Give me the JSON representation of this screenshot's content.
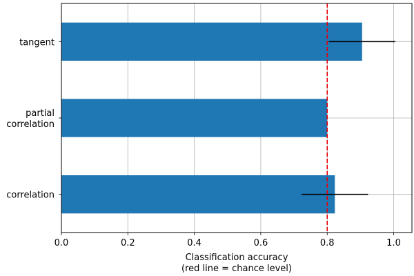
{
  "chart_data": {
    "type": "bar",
    "orientation": "horizontal",
    "categories": [
      "correlation",
      "partial\ncorrelation",
      "tangent"
    ],
    "values": [
      0.823,
      0.8,
      0.905
    ],
    "error": [
      0.1,
      null,
      0.1
    ],
    "reference_line": {
      "x": 0.8,
      "color": "#e8000b",
      "style": "dashed"
    },
    "xlabel": [
      "Classification accuracy",
      "(red line = chance level)"
    ],
    "ylabel": "",
    "xlim": [
      0,
      1.055
    ],
    "xticks": [
      0.0,
      0.2,
      0.4,
      0.6,
      0.8,
      1.0
    ],
    "grid": true,
    "bar_color": "#1f77b4",
    "error_color": "#000000"
  }
}
